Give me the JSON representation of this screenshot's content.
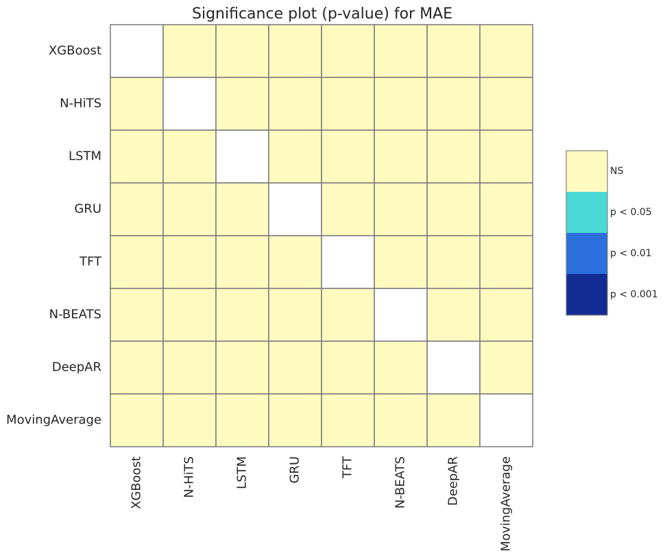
{
  "chart_data": {
    "type": "heatmap",
    "title": "Significance plot (p-value) for MAE",
    "xlabel": "",
    "ylabel": "",
    "rows": [
      "XGBoost",
      "N-HiTS",
      "LSTM",
      "GRU",
      "TFT",
      "N-BEATS",
      "DeepAR",
      "MovingAverage"
    ],
    "columns": [
      "XGBoost",
      "N-HiTS",
      "LSTM",
      "GRU",
      "TFT",
      "N-BEATS",
      "DeepAR",
      "MovingAverage"
    ],
    "values": [
      [
        null,
        "NS",
        "NS",
        "NS",
        "NS",
        "NS",
        "NS",
        "NS"
      ],
      [
        "NS",
        null,
        "NS",
        "NS",
        "NS",
        "NS",
        "NS",
        "NS"
      ],
      [
        "NS",
        "NS",
        null,
        "NS",
        "NS",
        "NS",
        "NS",
        "NS"
      ],
      [
        "NS",
        "NS",
        "NS",
        null,
        "NS",
        "NS",
        "NS",
        "NS"
      ],
      [
        "NS",
        "NS",
        "NS",
        "NS",
        null,
        "NS",
        "NS",
        "NS"
      ],
      [
        "NS",
        "NS",
        "NS",
        "NS",
        "NS",
        null,
        "NS",
        "NS"
      ],
      [
        "NS",
        "NS",
        "NS",
        "NS",
        "NS",
        "NS",
        null,
        "NS"
      ],
      [
        "NS",
        "NS",
        "NS",
        "NS",
        "NS",
        "NS",
        "NS",
        null
      ]
    ],
    "legend": [
      {
        "label": "NS",
        "color": "#fffbc0"
      },
      {
        "label": "p < 0.05",
        "color": "#4ad8d4"
      },
      {
        "label": "p < 0.01",
        "color": "#2b6fdc"
      },
      {
        "label": "p < 0.001",
        "color": "#122b92"
      }
    ],
    "legend_position": "right",
    "diagonal_color": "#ffffff",
    "grid_color": "#808080"
  }
}
